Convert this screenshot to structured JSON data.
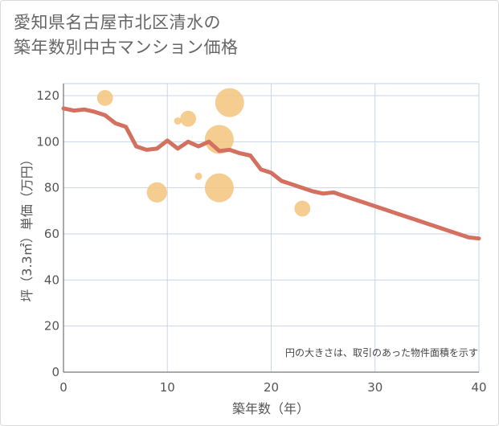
{
  "title_lines": [
    "愛知県名古屋市北区清水の",
    "築年数別中古マンション価格"
  ],
  "colors": {
    "line": "#d4705f",
    "bubble": "#f3c47e",
    "grid": "#c8d6e8",
    "axis": "#555555"
  },
  "chart_data": {
    "type": "scatter",
    "title": "愛知県名古屋市北区清水の築年数別中古マンション価格",
    "xlabel": "築年数（年）",
    "ylabel": "坪（3.3㎡）単価（万円）",
    "xlim": [
      0,
      40
    ],
    "ylim": [
      0,
      125
    ],
    "xticks": [
      0,
      10,
      20,
      30,
      40
    ],
    "yticks": [
      0,
      20,
      40,
      60,
      80,
      100,
      120
    ],
    "note": "円の大きさは、取引のあった物件面積を示す",
    "bubbles": [
      {
        "x": 4,
        "y": 119,
        "size": 3
      },
      {
        "x": 11,
        "y": 109,
        "size": 1
      },
      {
        "x": 12,
        "y": 110,
        "size": 3
      },
      {
        "x": 16,
        "y": 117,
        "size": 6
      },
      {
        "x": 15,
        "y": 101,
        "size": 6
      },
      {
        "x": 13,
        "y": 85,
        "size": 1
      },
      {
        "x": 9,
        "y": 78,
        "size": 4
      },
      {
        "x": 15,
        "y": 80,
        "size": 6
      },
      {
        "x": 23,
        "y": 71,
        "size": 3
      }
    ],
    "series": [
      {
        "name": "trend",
        "x": [
          0,
          1,
          2,
          3,
          4,
          5,
          6,
          7,
          8,
          9,
          10,
          11,
          12,
          13,
          14,
          15,
          16,
          17,
          18,
          19,
          20,
          21,
          22,
          23,
          24,
          25,
          26,
          27,
          28,
          29,
          30,
          31,
          32,
          33,
          34,
          35,
          36,
          37,
          38,
          39,
          40
        ],
        "y": [
          114.5,
          113.5,
          114,
          113,
          111.5,
          108,
          106.5,
          98,
          96.5,
          97,
          100.5,
          97,
          100,
          98,
          100,
          96,
          96.5,
          95,
          94,
          88,
          86.5,
          83,
          81.5,
          80,
          78.5,
          77.5,
          78,
          76.5,
          75,
          73.5,
          72,
          70.5,
          69,
          67.5,
          66,
          64.5,
          63,
          61.5,
          60,
          58.5,
          58
        ]
      }
    ]
  }
}
